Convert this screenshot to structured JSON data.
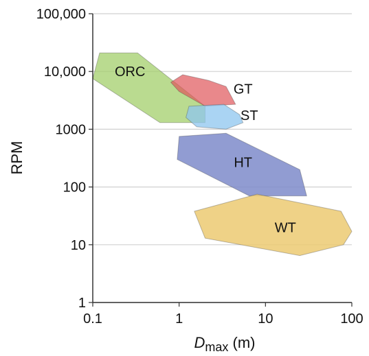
{
  "chart_data": {
    "type": "area",
    "x_scale": "log",
    "y_scale": "log",
    "xlim": [
      0.1,
      100
    ],
    "ylim": [
      1,
      100000
    ],
    "grid": true,
    "x_ticks": [
      {
        "value": 0.1,
        "label": "0.1"
      },
      {
        "value": 1,
        "label": "1"
      },
      {
        "value": 10,
        "label": "10"
      },
      {
        "value": 100,
        "label": "100"
      }
    ],
    "y_ticks": [
      {
        "value": 1,
        "label": "1"
      },
      {
        "value": 10,
        "label": "10"
      },
      {
        "value": 100,
        "label": "100"
      },
      {
        "value": 1000,
        "label": "1000"
      },
      {
        "value": 10000,
        "label": "10,000"
      },
      {
        "value": 100000,
        "label": "100,000"
      }
    ],
    "xlabel_main": "D",
    "xlabel_sub": "max",
    "xlabel_unit": "(m)",
    "ylabel": "RPM",
    "series": [
      {
        "name": "ORC",
        "color": "#a3cf6b",
        "opacity": 0.75,
        "label_at": [
          0.27,
          10000
        ],
        "points": [
          [
            0.1,
            7500
          ],
          [
            0.12,
            21000
          ],
          [
            0.33,
            21000
          ],
          [
            2,
            2500
          ],
          [
            2,
            1300
          ],
          [
            0.6,
            1300
          ]
        ]
      },
      {
        "name": "GT",
        "color": "#e0555a",
        "opacity": 0.7,
        "label_at": [
          5.5,
          5000
        ],
        "points": [
          [
            0.8,
            6500
          ],
          [
            1.1,
            8800
          ],
          [
            2.2,
            7000
          ],
          [
            3.5,
            5500
          ],
          [
            4.5,
            2700
          ],
          [
            2.0,
            2500
          ],
          [
            1.0,
            4500
          ]
        ]
      },
      {
        "name": "ST",
        "color": "#8ec6ef",
        "opacity": 0.75,
        "label_at": [
          6.5,
          1750
        ],
        "points": [
          [
            1.3,
            2500
          ],
          [
            3.3,
            2700
          ],
          [
            5.0,
            1800
          ],
          [
            5.5,
            1300
          ],
          [
            3.5,
            1000
          ],
          [
            1.6,
            1100
          ],
          [
            1.2,
            1600
          ]
        ]
      },
      {
        "name": "HT",
        "color": "#7e8bca",
        "opacity": 0.85,
        "label_at": [
          5.5,
          270
        ],
        "points": [
          [
            0.95,
            300
          ],
          [
            1.0,
            750
          ],
          [
            3.5,
            850
          ],
          [
            25,
            200
          ],
          [
            30,
            70
          ],
          [
            6.5,
            70
          ]
        ]
      },
      {
        "name": "WT",
        "color": "#ecca72",
        "opacity": 0.85,
        "label_at": [
          17,
          20
        ],
        "points": [
          [
            1.5,
            38
          ],
          [
            8,
            75
          ],
          [
            75,
            38
          ],
          [
            100,
            17
          ],
          [
            80,
            10
          ],
          [
            25,
            6.5
          ],
          [
            2,
            13
          ]
        ]
      }
    ]
  }
}
